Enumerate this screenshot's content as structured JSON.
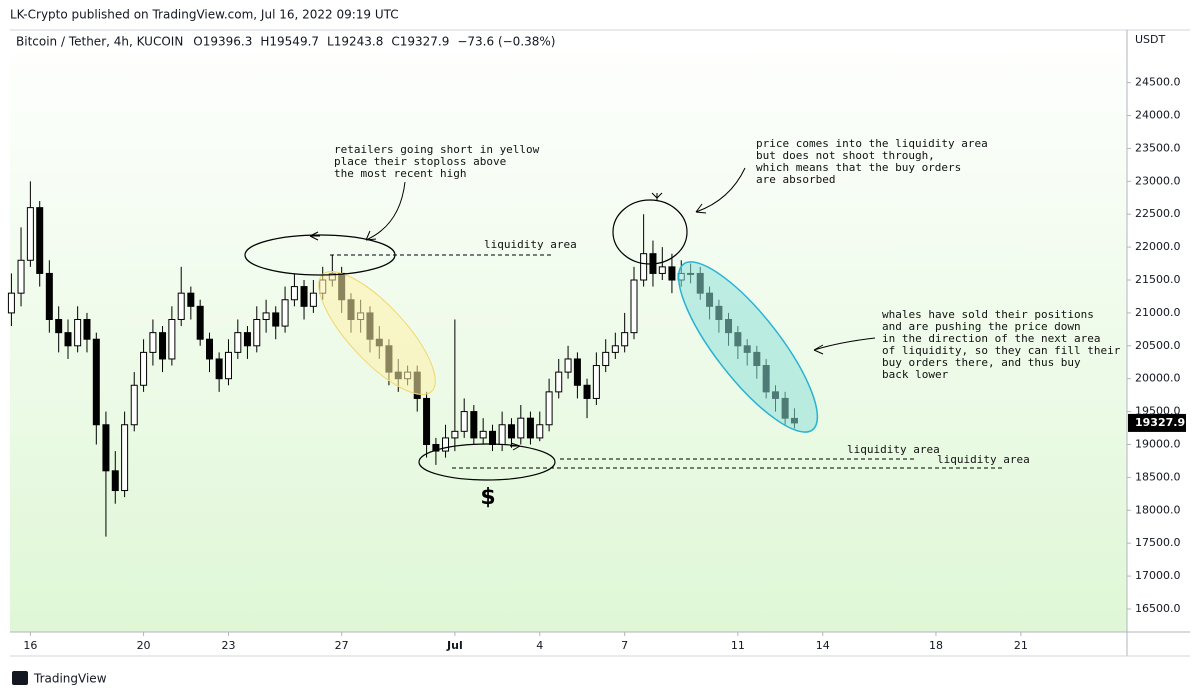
{
  "header": {
    "published": "LK-Crypto published on TradingView.com, Jul 16, 2022 09:19 UTC",
    "footer": "TradingView"
  },
  "chart_data": {
    "type": "candlestick",
    "symbol": "Bitcoin / Tether, 4h, KUCOIN",
    "ohlc_labels": [
      "O19396.3",
      "H19549.7",
      "L19243.8",
      "C19327.9",
      "−73.6 (−0.38%)"
    ],
    "y_axis_label": "USDT",
    "up_color": "#ffffff",
    "down_color": "#000000",
    "wick_color": "#000000",
    "x": [
      0.33,
      0.67,
      1,
      1.33,
      1.67,
      2,
      2.33,
      2.67,
      3,
      3.33,
      3.67,
      4,
      4.33,
      4.67,
      5,
      5.33,
      5.67,
      6,
      6.33,
      6.67,
      7,
      7.33,
      7.67,
      8,
      8.33,
      8.67,
      9,
      9.33,
      9.67,
      10,
      10.33,
      10.67,
      11,
      11.33,
      11.67,
      12,
      12.33,
      12.67,
      13,
      13.33,
      13.67,
      14,
      14.33,
      14.67,
      15,
      15.33,
      15.67,
      16,
      16.33,
      16.67,
      17,
      17.33,
      17.67,
      18,
      18.33,
      18.67,
      19,
      19.33,
      19.67,
      20,
      20.33,
      20.67,
      21,
      21.33,
      21.67,
      22,
      22.33,
      22.67,
      23,
      23.33,
      23.67,
      24,
      24.33,
      24.67,
      25,
      25.33,
      25.67,
      26,
      26.33,
      26.67,
      27,
      27.33,
      27.67,
      28
    ],
    "open": [
      21000,
      21300,
      21800,
      22600,
      21600,
      20900,
      20700,
      20500,
      20900,
      20600,
      19300,
      18600,
      18300,
      19300,
      19900,
      20400,
      20700,
      20300,
      20900,
      21300,
      21100,
      20600,
      20300,
      20000,
      20400,
      20700,
      20500,
      20900,
      21000,
      20800,
      21200,
      21400,
      21100,
      21300,
      21500,
      21600,
      21200,
      20900,
      21000,
      20600,
      20500,
      20100,
      20000,
      20100,
      19700,
      19000,
      18900,
      19100,
      19200,
      19500,
      19100,
      19200,
      19000,
      19300,
      19100,
      19400,
      19100,
      19300,
      19800,
      20100,
      20300,
      19900,
      19700,
      20200,
      20400,
      20500,
      20700,
      21500,
      21900,
      21600,
      21700,
      21500,
      21600,
      21600,
      21300,
      21100,
      20900,
      20700,
      20500,
      20400,
      20200,
      19800,
      19700,
      19396.3
    ],
    "high": [
      21600,
      22300,
      23000,
      22700,
      21800,
      21100,
      20900,
      21100,
      21000,
      20700,
      19500,
      18900,
      19500,
      20100,
      20600,
      20900,
      20800,
      21100,
      21700,
      21400,
      21200,
      20700,
      20400,
      20600,
      20900,
      20800,
      21100,
      21200,
      21100,
      21400,
      21600,
      21500,
      21500,
      21700,
      21880,
      21700,
      21300,
      21200,
      21100,
      20800,
      20600,
      20300,
      20200,
      20200,
      19800,
      19100,
      19300,
      20900,
      19700,
      19600,
      19400,
      19300,
      19500,
      19400,
      19600,
      19500,
      19500,
      20000,
      20300,
      20500,
      20400,
      20000,
      20400,
      20600,
      20700,
      21000,
      21700,
      22500,
      22100,
      22000,
      21900,
      21800,
      21750,
      21700,
      21400,
      21200,
      21000,
      20800,
      20600,
      20500,
      20300,
      19900,
      19800,
      19549.7
    ],
    "low": [
      20800,
      21100,
      21700,
      21400,
      20700,
      20400,
      20300,
      20400,
      20400,
      19000,
      17600,
      18100,
      18200,
      19200,
      19800,
      20200,
      20100,
      20200,
      20800,
      20900,
      20500,
      20100,
      19800,
      19900,
      20300,
      20300,
      20400,
      20700,
      20600,
      20700,
      21100,
      20900,
      21000,
      21200,
      21400,
      21000,
      20700,
      20700,
      20400,
      20300,
      19900,
      19800,
      19900,
      19500,
      18800,
      18690,
      18800,
      18900,
      19100,
      19000,
      19000,
      18900,
      18900,
      18950,
      19000,
      19000,
      19050,
      19200,
      19700,
      20000,
      19700,
      19400,
      19600,
      20100,
      20300,
      20400,
      20600,
      21400,
      21400,
      21500,
      21300,
      21400,
      21450,
      21200,
      20900,
      20700,
      20500,
      20300,
      20200,
      20000,
      19700,
      19500,
      19300,
      19243.8
    ],
    "close": [
      21300,
      21800,
      22600,
      21600,
      20900,
      20700,
      20500,
      20900,
      20600,
      19300,
      18600,
      18300,
      19300,
      19900,
      20400,
      20700,
      20300,
      20900,
      21300,
      21100,
      20600,
      20300,
      20000,
      20400,
      20700,
      20500,
      20900,
      21000,
      20800,
      21200,
      21400,
      21100,
      21300,
      21500,
      21600,
      21200,
      20900,
      21000,
      20600,
      20500,
      20100,
      20000,
      20100,
      19700,
      19000,
      18900,
      19100,
      19200,
      19500,
      19100,
      19200,
      19000,
      19300,
      19100,
      19400,
      19100,
      19300,
      19800,
      20100,
      20300,
      19900,
      19700,
      20200,
      20400,
      20500,
      20700,
      21500,
      21900,
      21600,
      21700,
      21500,
      21600,
      21600,
      21300,
      21100,
      20900,
      20700,
      20500,
      20400,
      20200,
      19800,
      19700,
      19400,
      19327.9
    ],
    "xlim": [
      0.28,
      39.68
    ],
    "xticks": [
      {
        "value": 1,
        "label": "16"
      },
      {
        "value": 5,
        "label": "20"
      },
      {
        "value": 8,
        "label": "23"
      },
      {
        "value": 12,
        "label": "27"
      },
      {
        "value": 16,
        "label": "Jul"
      },
      {
        "value": 19,
        "label": "4"
      },
      {
        "value": 22,
        "label": "7"
      },
      {
        "value": 26,
        "label": "11"
      },
      {
        "value": 29,
        "label": "14"
      },
      {
        "value": 33,
        "label": "18"
      },
      {
        "value": 36,
        "label": "21"
      }
    ],
    "ylim": [
      16150,
      25300
    ],
    "yticks": [
      {
        "value": 16500,
        "label": "16500.0"
      },
      {
        "value": 17000,
        "label": "17000.0"
      },
      {
        "value": 17500,
        "label": "17500.0"
      },
      {
        "value": 18000,
        "label": "18000.0"
      },
      {
        "value": 18500,
        "label": "18500.0"
      },
      {
        "value": 19000,
        "label": "19000.0"
      },
      {
        "value": 19500,
        "label": "19500.0"
      },
      {
        "value": 20000,
        "label": "20000.0"
      },
      {
        "value": 20500,
        "label": "20500.0"
      },
      {
        "value": 21000,
        "label": "21000.0"
      },
      {
        "value": 21500,
        "label": "21500.0"
      },
      {
        "value": 22000,
        "label": "22000.0"
      },
      {
        "value": 22500,
        "label": "22500.0"
      },
      {
        "value": 23000,
        "label": "23000.0"
      },
      {
        "value": 23500,
        "label": "23500.0"
      },
      {
        "value": 24000,
        "label": "24000.0"
      },
      {
        "value": 24500,
        "label": "24500.0"
      }
    ],
    "annotations": [
      [
        "retailers going short in yellow",
        "place their stoploss above",
        "the most recent high"
      ],
      [
        "liquidity area"
      ],
      [
        "price comes into the liquidity area",
        "but does not shoot through,",
        "which means that the buy orders",
        "are absorbed"
      ],
      [
        "whales have sold their positions",
        "and are pushing the price down",
        "in the direction of the next area",
        "of liquidity, so they can fill their",
        "buy orders there, and thus buy",
        "back lower"
      ],
      [
        "liquidity area"
      ],
      [
        "liquidity area"
      ],
      [
        "$"
      ]
    ]
  }
}
